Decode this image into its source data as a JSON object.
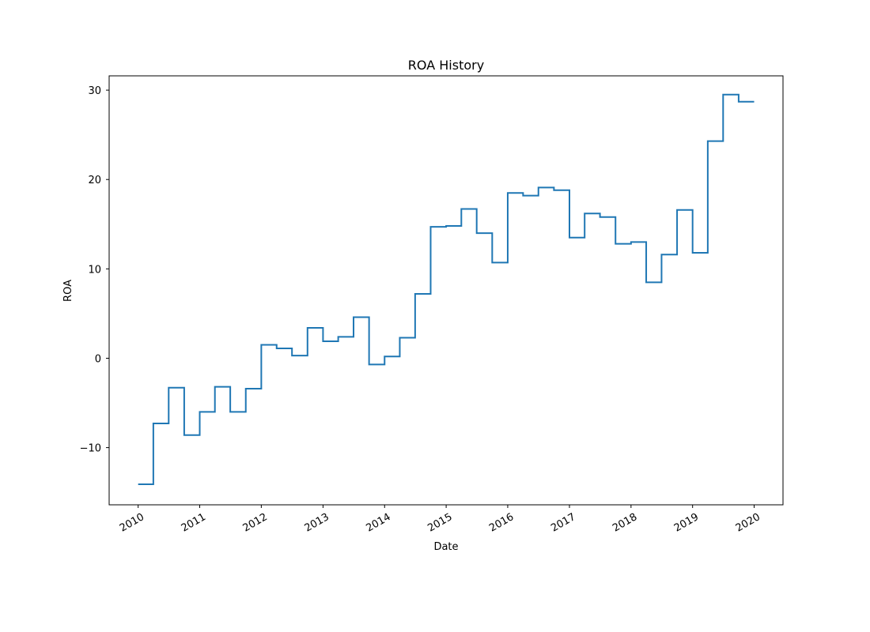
{
  "chart_data": {
    "type": "line",
    "step": "post",
    "title": "ROA History",
    "xlabel": "Date",
    "ylabel": "ROA",
    "xlim": [
      "2009-07-13",
      "2020-06-20"
    ],
    "ylim": [
      -16.4,
      31.6
    ],
    "x_ticks": [
      "2010-01-01",
      "2011-01-01",
      "2012-01-01",
      "2013-01-01",
      "2014-01-01",
      "2015-01-01",
      "2016-01-01",
      "2017-01-01",
      "2018-01-01",
      "2019-01-01",
      "2020-01-01"
    ],
    "x_tick_labels": [
      "2010",
      "2011",
      "2012",
      "2013",
      "2014",
      "2015",
      "2016",
      "2017",
      "2018",
      "2019",
      "2020"
    ],
    "y_ticks": [
      -10,
      0,
      10,
      20,
      30
    ],
    "y_tick_labels": [
      "−10",
      "0",
      "10",
      "20",
      "30"
    ],
    "grid": false,
    "legend": "none",
    "series": [
      {
        "color": "#1f77b4",
        "x": [
          "2010-01-01",
          "2010-04-01",
          "2010-07-01",
          "2010-10-01",
          "2011-01-01",
          "2011-04-01",
          "2011-07-01",
          "2011-10-01",
          "2012-01-01",
          "2012-04-01",
          "2012-07-01",
          "2012-10-01",
          "2013-01-01",
          "2013-04-01",
          "2013-07-01",
          "2013-10-01",
          "2014-01-01",
          "2014-04-01",
          "2014-07-01",
          "2014-10-01",
          "2015-01-01",
          "2015-04-01",
          "2015-07-01",
          "2015-10-01",
          "2016-01-01",
          "2016-04-01",
          "2016-07-01",
          "2016-10-01",
          "2017-01-01",
          "2017-04-01",
          "2017-07-01",
          "2017-10-01",
          "2018-01-01",
          "2018-04-01",
          "2018-07-01",
          "2018-10-01",
          "2019-01-01",
          "2019-04-01",
          "2019-07-01",
          "2019-10-01",
          "2020-01-01"
        ],
        "values": [
          -14.1,
          -7.3,
          -3.3,
          -8.6,
          -6.0,
          -3.2,
          -6.0,
          -3.4,
          1.5,
          1.1,
          0.3,
          3.4,
          1.9,
          2.4,
          4.6,
          -0.7,
          0.2,
          2.3,
          7.2,
          14.7,
          14.8,
          16.7,
          14.0,
          10.7,
          18.5,
          18.2,
          19.1,
          18.8,
          13.5,
          16.2,
          15.8,
          12.8,
          13.0,
          8.5,
          11.6,
          16.6,
          11.8,
          24.3,
          29.5,
          28.7,
          28.7
        ]
      }
    ]
  }
}
